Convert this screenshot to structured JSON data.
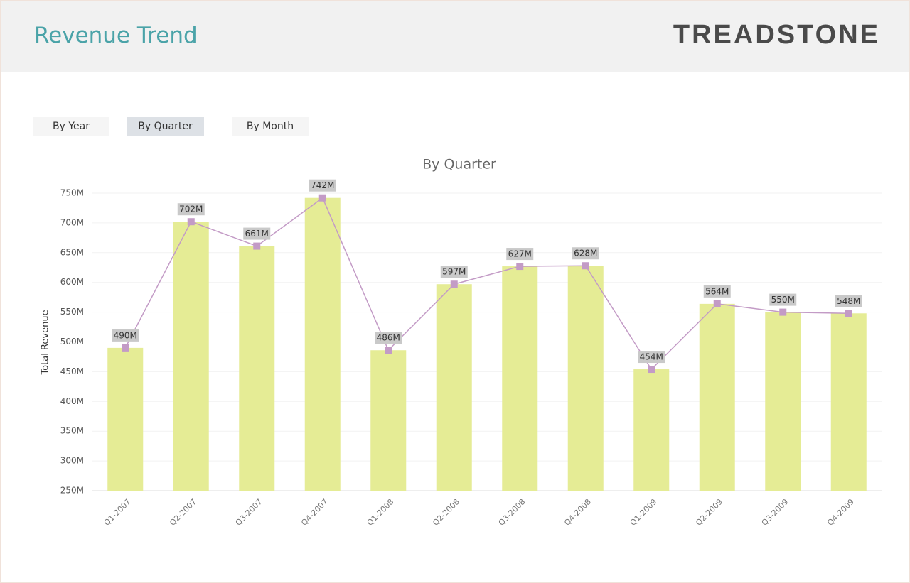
{
  "header": {
    "title": "Revenue Trend",
    "logo": "TREADSTONE"
  },
  "buttons": [
    "By Year",
    "By Quarter",
    "By Month"
  ],
  "chart_data": {
    "type": "bar",
    "title": "By Quarter",
    "y_label": "Total Revenue",
    "categories": [
      "Q1-2007",
      "Q2-2007",
      "Q3-2007",
      "Q4-2007",
      "Q1-2008",
      "Q2-2008",
      "Q3-2008",
      "Q4-2008",
      "Q1-2009",
      "Q2-2009",
      "Q3-2009",
      "Q4-2009"
    ],
    "values": [
      490000000,
      702000000,
      661000000,
      742000000,
      486000000,
      597000000,
      627000000,
      628000000,
      454000000,
      564000000,
      550000000,
      548000000
    ],
    "value_labels": [
      "490M",
      "702M",
      "661M",
      "742M",
      "486M",
      "597M",
      "627M",
      "628M",
      "454M",
      "564M",
      "550M",
      "548M"
    ],
    "color": "#e5ec95",
    "line": true,
    "line_color": "#c39bc6",
    "ylim": [
      250000000,
      750000000
    ],
    "yticks": [
      {
        "value": 250000000,
        "label": "250M"
      },
      {
        "value": 300000000,
        "label": "300M"
      },
      {
        "value": 350000000,
        "label": "350M"
      },
      {
        "value": 400000000,
        "label": "400M"
      },
      {
        "value": 450000000,
        "label": "450M"
      },
      {
        "value": 500000000,
        "label": "500M"
      },
      {
        "value": 550000000,
        "label": "550M"
      },
      {
        "value": 600000000,
        "label": "600M"
      },
      {
        "value": 650000000,
        "label": "650M"
      },
      {
        "value": 700000000,
        "label": "700M"
      },
      {
        "value": 750000000,
        "label": "750M"
      }
    ],
    "grid": true
  }
}
